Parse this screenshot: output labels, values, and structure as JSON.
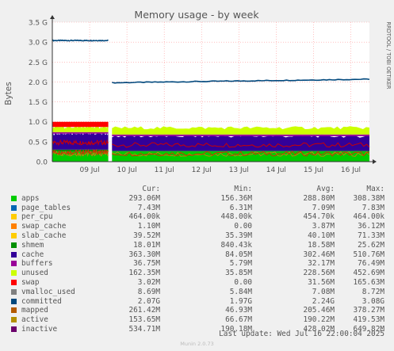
{
  "chart_data": {
    "type": "area",
    "title": "Memory usage - by week",
    "ylabel": "Bytes",
    "watermark": "RRDTOOL / TOBI OETIKER",
    "ylim": [
      0,
      3.5
    ],
    "yticks": [
      "0.0",
      "0.5 G",
      "1.0 G",
      "1.5 G",
      "2.0 G",
      "2.5 G",
      "3.0 G",
      "3.5 G"
    ],
    "ytick_values": [
      0,
      0.5,
      1.0,
      1.5,
      2.0,
      2.5,
      3.0,
      3.5
    ],
    "xlim": [
      0,
      8.5
    ],
    "xticks": [
      "09 Jul",
      "10 Jul",
      "11 Jul",
      "12 Jul",
      "13 Jul",
      "14 Jul",
      "15 Jul",
      "16 Jul"
    ],
    "xtick_values": [
      1,
      2,
      3,
      4,
      5,
      6,
      7,
      8
    ],
    "gap": [
      1.5,
      1.6
    ],
    "stack_bands_gib": [
      {
        "name": "apps",
        "before_gap": 0.25,
        "after_gap": 0.25,
        "color": "#00cc00"
      },
      {
        "name": "shmem",
        "before_gap": 0.05,
        "after_gap": 0.02,
        "color": "#008f00"
      },
      {
        "name": "cache",
        "before_gap": 0.4,
        "after_gap": 0.37,
        "color": "#330099"
      },
      {
        "name": "buffers",
        "before_gap": 0.04,
        "after_gap": 0.04,
        "color": "#990099"
      },
      {
        "name": "unused",
        "before_gap": 0.13,
        "after_gap": 0.17,
        "color": "#ccff00"
      },
      {
        "name": "swap",
        "before_gap": 0.13,
        "after_gap": 0.0,
        "color": "#ff0000"
      }
    ],
    "line_series_gib": [
      {
        "name": "committed",
        "before_gap": 3.04,
        "after_gap_start": 1.98,
        "after_gap_end": 2.07,
        "color": "#00487d"
      },
      {
        "name": "inactive",
        "before_gap": 0.48,
        "after_gap": 0.42,
        "color": "#cc0000"
      },
      {
        "name": "active",
        "before_gap": 0.2,
        "after_gap": 0.19,
        "color": "#b8860b"
      },
      {
        "name": "mapped",
        "before_gap": 0.24,
        "after_gap": 0.2,
        "color": "#cc3300"
      }
    ],
    "columns": [
      "Cur:",
      "Min:",
      "Avg:",
      "Max:"
    ],
    "series": [
      {
        "name": "apps",
        "color": "#00cc00",
        "values": [
          "293.06M",
          "156.36M",
          "288.80M",
          "308.38M"
        ]
      },
      {
        "name": "page_tables",
        "color": "#0066b3",
        "values": [
          "7.43M",
          "6.31M",
          "7.09M",
          "7.83M"
        ]
      },
      {
        "name": "per_cpu",
        "color": "#ffcc00",
        "values": [
          "464.00k",
          "448.00k",
          "454.70k",
          "464.00k"
        ]
      },
      {
        "name": "swap_cache",
        "color": "#ff8000",
        "values": [
          "1.10M",
          "0.00",
          "3.87M",
          "36.12M"
        ]
      },
      {
        "name": "slab_cache",
        "color": "#ffcc00",
        "values": [
          "39.52M",
          "35.39M",
          "40.10M",
          "71.33M"
        ]
      },
      {
        "name": "shmem",
        "color": "#008f00",
        "values": [
          "18.01M",
          "840.43k",
          "18.58M",
          "25.62M"
        ]
      },
      {
        "name": "cache",
        "color": "#330099",
        "values": [
          "363.30M",
          "84.05M",
          "302.46M",
          "510.76M"
        ]
      },
      {
        "name": "buffers",
        "color": "#990099",
        "values": [
          "36.75M",
          "5.79M",
          "32.17M",
          "76.49M"
        ]
      },
      {
        "name": "unused",
        "color": "#ccff00",
        "values": [
          "162.35M",
          "35.85M",
          "228.56M",
          "452.69M"
        ]
      },
      {
        "name": "swap",
        "color": "#ff0000",
        "values": [
          "3.02M",
          "0.00",
          "31.56M",
          "165.63M"
        ]
      },
      {
        "name": "vmalloc_used",
        "color": "#808080",
        "values": [
          "8.69M",
          "5.84M",
          "7.08M",
          "8.72M"
        ]
      },
      {
        "name": "committed",
        "color": "#00487d",
        "values": [
          "2.07G",
          "1.97G",
          "2.24G",
          "3.08G"
        ]
      },
      {
        "name": "mapped",
        "color": "#b35a00",
        "values": [
          "261.42M",
          "46.93M",
          "205.46M",
          "378.27M"
        ]
      },
      {
        "name": "active",
        "color": "#b38f00",
        "values": [
          "153.65M",
          "66.67M",
          "190.22M",
          "419.53M"
        ]
      },
      {
        "name": "inactive",
        "color": "#6b006b",
        "values": [
          "534.71M",
          "190.18M",
          "428.02M",
          "649.82M"
        ]
      }
    ],
    "last_update": "Last update: Wed Jul 16 22:00:04 2025",
    "footer": "Munin 2.0.73"
  }
}
